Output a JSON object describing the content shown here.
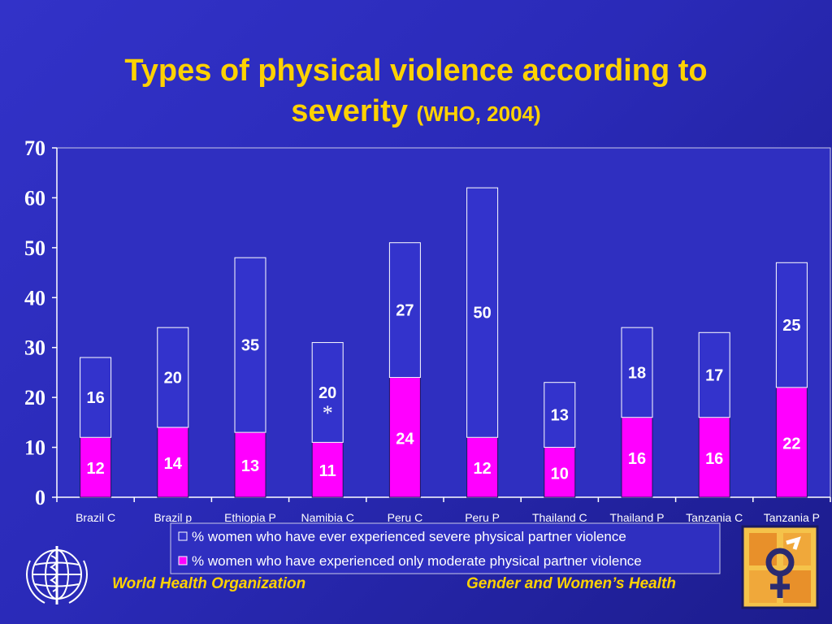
{
  "title": {
    "main_line1": "Types of physical violence according to",
    "main_line2": "severity",
    "source": "(WHO, 2004)"
  },
  "footer": {
    "left": "World Health Organization",
    "right": "Gender and Women’s Health"
  },
  "colors": {
    "background": "#2a2ab8",
    "title": "#ffd200",
    "severe": "#3333cc",
    "moderate": "#ff00ff",
    "axis_text": "#ffffff"
  },
  "chart_data": {
    "type": "bar",
    "stacked": true,
    "categories": [
      "Brazil C",
      "Brazil p",
      "Ethiopia P",
      "Namibia C",
      "Peru C",
      "Peru P",
      "Thailand C",
      "Thailand P",
      "Tanzania C",
      "Tanzania P"
    ],
    "series": [
      {
        "name": "% women who have experienced only moderate physical partner violence",
        "values": [
          12,
          14,
          13,
          11,
          24,
          12,
          10,
          16,
          16,
          22
        ],
        "labels": [
          "12",
          "14",
          "13",
          "11",
          "24",
          "12",
          "10",
          "16",
          "16",
          "22"
        ]
      },
      {
        "name": "% women who have ever experienced severe physical  partner violence",
        "values": [
          16,
          20,
          35,
          20,
          27,
          50,
          13,
          18,
          17,
          25
        ],
        "labels": [
          "16",
          "20",
          "35",
          "20",
          "27",
          "50",
          "13",
          "18",
          "17",
          "25"
        ]
      }
    ],
    "annotations": [
      {
        "category": "Namibia C",
        "text": "*"
      }
    ],
    "ylim": [
      0,
      70
    ],
    "yticks": [
      "0",
      "10",
      "20",
      "30",
      "40",
      "50",
      "60",
      "70"
    ],
    "grid": false,
    "legend_position": "bottom"
  }
}
